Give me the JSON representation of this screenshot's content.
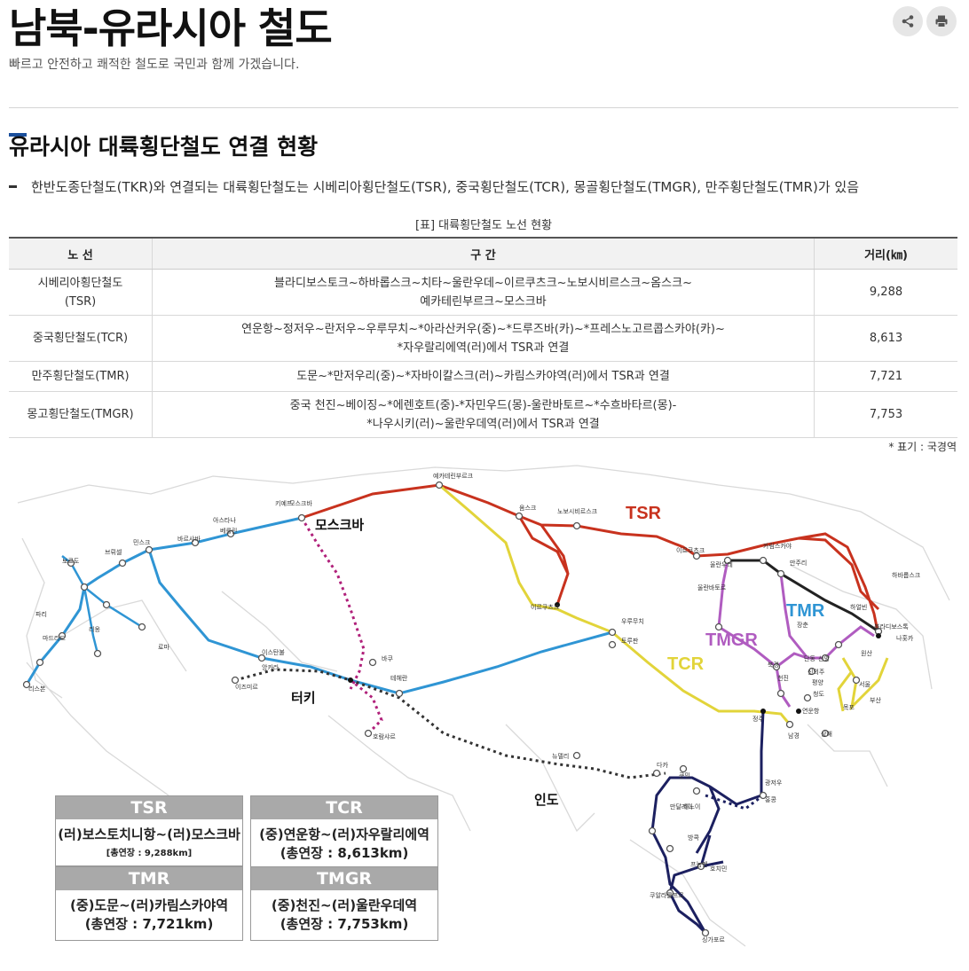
{
  "header": {
    "title": "남북-유라시아 철도",
    "subtitle": "빠르고 안전하고 쾌적한 철도로 국민과 함께 가겠습니다.",
    "share_icon": "share-icon",
    "print_icon": "print-icon"
  },
  "section": {
    "title": "유라시아 대륙횡단철도 연결 현황",
    "bullet": "한반도종단철도(TKR)와 연결되는 대륙횡단철도는 시베리아횡단철도(TSR), 중국횡단철도(TCR), 몽골횡단철도(TMGR), 만주횡단철도(TMR)가 있음"
  },
  "table": {
    "caption": "[표] 대륙횡단철도 노선 현황",
    "headers": [
      "노 선",
      "구 간",
      "거리(㎞)"
    ],
    "rows": [
      {
        "route": [
          "시베리아횡단철도",
          "(TSR)"
        ],
        "section": [
          "블라디보스토크~하바롭스크~치타~울란우데~이르쿠츠크~노보시비르스크~옴스크~",
          "예카테린부르크~모스크바"
        ],
        "distance": "9,288"
      },
      {
        "route": [
          "중국횡단철도(TCR)"
        ],
        "section": [
          "연운항~정저우~란저우~우루무치~*아라산커우(중)~*드루즈바(카)~*프레스노고르콥스카야(카)~",
          "*자우랄리에역(러)에서 TSR과 연결"
        ],
        "distance": "8,613"
      },
      {
        "route": [
          "만주횡단철도(TMR)"
        ],
        "section": [
          "도문~*만저우리(중)~*자바이칼스크(러)~카림스카야역(러)에서 TSR과 연결"
        ],
        "distance": "7,721"
      },
      {
        "route": [
          "몽고횡단철도(TMGR)"
        ],
        "section": [
          "중국 천진~베이징~*에렌호트(중)-*자민우드(몽)-울란바토르~*수흐바타르(몽)-",
          "*나우시키(러)~울란우데역(러)에서 TSR과 연결"
        ],
        "distance": "7,753"
      }
    ],
    "note": "* 표기 : 국경역"
  },
  "map": {
    "colors": {
      "tsr": "#c8321e",
      "tcr": "#e2d43a",
      "tmr": "#222222",
      "tmgr": "#b05cc0",
      "west": "#2f95d4",
      "moscow_baku": "#b0207a",
      "dotted": "#333333",
      "south": "#1c2060"
    },
    "route_labels": {
      "tsr": "TSR",
      "tmr": "TMR",
      "tmgr": "TMGR",
      "tcr": "TCR"
    },
    "big_labels": {
      "moscow": "모스크바",
      "turkey": "터키",
      "india": "인도"
    },
    "city_labels": [
      "모스크바",
      "예카테린부르크",
      "옴스크",
      "노보시비르스크",
      "이르쿠츠크",
      "카림스카야",
      "하바롭스크",
      "울란우데",
      "만주리",
      "울란바토르",
      "하얼빈",
      "블라디보스톡",
      "나홋카",
      "장춘",
      "선양",
      "단동",
      "평양",
      "신의주",
      "원산",
      "서울",
      "부산",
      "목포",
      "북경",
      "천진",
      "청도",
      "정주",
      "연운항",
      "상해",
      "남경",
      "우루무치",
      "토루판",
      "이르쿠츠크",
      "아스타나",
      "이스탄불",
      "앙카라",
      "이즈미르",
      "테헤란",
      "바쿠",
      "호람샤르",
      "뉴델리",
      "다카",
      "만달레이",
      "쿤밍",
      "하노이",
      "방콕",
      "프놈펜",
      "호치민",
      "쿠알라룸프르",
      "싱가포르",
      "광저우",
      "홍콩",
      "베를린",
      "바르샤바",
      "민스크",
      "브뤼셀",
      "파리",
      "마드리드",
      "리옹",
      "로마",
      "리스본",
      "보르도",
      "키예프"
    ],
    "legend": [
      {
        "head": "TSR",
        "route": "(러)보스토치니항~(러)모스크바",
        "length": "[총연장 : 9,288km]",
        "small": true
      },
      {
        "head": "TCR",
        "route": "(중)연운항~(러)자우랄리에역",
        "length": "(총연장 :  8,613km)",
        "small": false
      },
      {
        "head": "TMR",
        "route": "(중)도문~(러)카림스카야역",
        "length": "(총연장 :  7,721km)",
        "small": false
      },
      {
        "head": "TMGR",
        "route": "(중)천진~(러)울란우데역",
        "length": "(총연장 :  7,753km)",
        "small": false
      }
    ]
  }
}
